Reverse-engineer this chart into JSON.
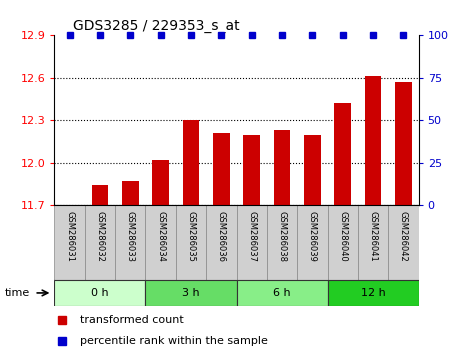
{
  "title": "GDS3285 / 229353_s_at",
  "samples": [
    "GSM286031",
    "GSM286032",
    "GSM286033",
    "GSM286034",
    "GSM286035",
    "GSM286036",
    "GSM286037",
    "GSM286038",
    "GSM286039",
    "GSM286040",
    "GSM286041",
    "GSM286042"
  ],
  "bar_values": [
    11.701,
    11.84,
    11.87,
    12.02,
    12.3,
    12.21,
    12.2,
    12.23,
    12.2,
    12.42,
    12.61,
    12.57
  ],
  "percentile_value": 100,
  "ylim_left": [
    11.7,
    12.9
  ],
  "ylim_right": [
    0,
    100
  ],
  "yticks_left": [
    11.7,
    12.0,
    12.3,
    12.6,
    12.9
  ],
  "yticks_right": [
    0,
    25,
    50,
    75,
    100
  ],
  "bar_color": "#CC0000",
  "dot_color": "#0000CC",
  "time_groups": [
    {
      "label": "0 h",
      "start": 0,
      "end": 3,
      "color": "#ccffcc"
    },
    {
      "label": "3 h",
      "start": 3,
      "end": 6,
      "color": "#66dd66"
    },
    {
      "label": "6 h",
      "start": 6,
      "end": 9,
      "color": "#88ee88"
    },
    {
      "label": "12 h",
      "start": 9,
      "end": 12,
      "color": "#22cc22"
    }
  ],
  "legend_bar_label": "transformed count",
  "legend_dot_label": "percentile rank within the sample",
  "xlabel": "time",
  "background_color": "#ffffff",
  "sample_bg_color": "#d0d0d0",
  "grid_color": "#000000"
}
